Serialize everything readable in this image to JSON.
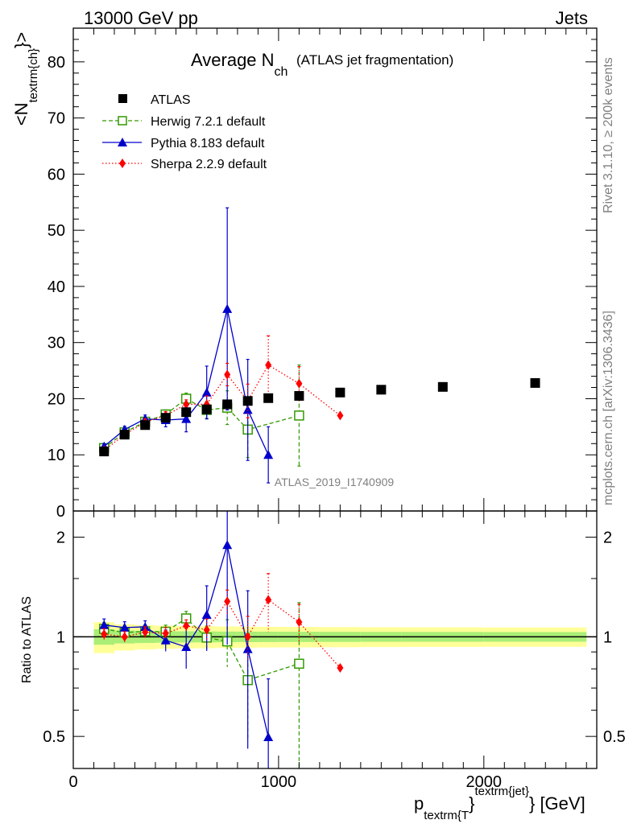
{
  "header": {
    "left": "13000 GeV pp",
    "right": "Jets"
  },
  "side_labels": {
    "rivet": "Rivet 3.1.10, ≥ 200k events",
    "mcplots": "mcplots.cern.ch [arXiv:1306.3436]"
  },
  "title": {
    "main": "Average N",
    "sub": "ch",
    "paren": "(ATLAS jet fragmentation)"
  },
  "watermark": "ATLAS_2019_I1740909",
  "axes": {
    "ylabel_main": "<N",
    "ylabel_sub": "textrm{ch}",
    "ylabel_close": "}>",
    "ylabel_ratio": "Ratio to ATLAS",
    "xlabel_p": "p",
    "xlabel_sub": "textrm{T",
    "xlabel_close": "}",
    "xlabel_sup": "textrm{jet}",
    "xlabel_unit": "} [GeV]",
    "xticks": [
      "0",
      "1000",
      "2000"
    ],
    "yticks_main": [
      "0",
      "10",
      "20",
      "30",
      "40",
      "50",
      "60",
      "70",
      "80"
    ],
    "yticks_ratio": [
      "0.5",
      "1",
      "2"
    ]
  },
  "chart_data": {
    "type": "scatter",
    "xlim": [
      0,
      2550
    ],
    "ylim_main": [
      0,
      86
    ],
    "ylim_ratio": [
      0.4,
      2.4
    ],
    "ratio_scale": "log",
    "legend_position": "top-left",
    "series": [
      {
        "name": "ATLAS",
        "color": "#000000",
        "marker": "square",
        "line": "none",
        "x": [
          150,
          250,
          350,
          450,
          550,
          650,
          750,
          850,
          950,
          1100,
          1300,
          1500,
          1800,
          2250
        ],
        "y": [
          10.6,
          13.6,
          15.3,
          16.6,
          17.6,
          18.1,
          19.0,
          19.6,
          20.1,
          20.5,
          21.1,
          21.6,
          22.1,
          22.8
        ],
        "err": [
          0.5,
          0.5,
          0.5,
          0.5,
          0.5,
          0.5,
          0.5,
          0.5,
          0.5,
          0.5,
          0.5,
          0.5,
          0.5,
          0.5
        ]
      },
      {
        "name": "Herwig 7.2.1 default",
        "color": "#339900",
        "marker": "open-square",
        "line": "dashed",
        "x": [
          150,
          250,
          350,
          450,
          550,
          650,
          750,
          850,
          1100
        ],
        "y": [
          11.2,
          14.0,
          15.9,
          17.2,
          20.0,
          18.0,
          18.4,
          14.5,
          17.0
        ],
        "err": [
          0.5,
          0.6,
          0.7,
          0.8,
          1.0,
          1.5,
          3.0,
          5.0,
          9.0
        ]
      },
      {
        "name": "Pythia 8.183 default",
        "color": "#0000cc",
        "marker": "triangle",
        "line": "solid",
        "x": [
          150,
          250,
          350,
          450,
          550,
          650,
          750,
          850,
          950
        ],
        "y": [
          11.5,
          14.5,
          16.4,
          16.2,
          16.4,
          21.1,
          36.0,
          18.0,
          10.0
        ],
        "err": [
          0.5,
          0.6,
          0.7,
          1.2,
          2.3,
          4.7,
          18.0,
          9.0,
          5.0
        ]
      },
      {
        "name": "Sherpa 2.2.9 default",
        "color": "#ff0000",
        "marker": "diamond",
        "line": "dotted",
        "x": [
          150,
          250,
          350,
          450,
          550,
          650,
          750,
          850,
          950,
          1100,
          1300
        ],
        "y": [
          10.8,
          13.6,
          15.8,
          17.0,
          19.0,
          19.0,
          24.3,
          19.6,
          26.0,
          22.7,
          17.0
        ],
        "err": [
          0.4,
          0.5,
          0.6,
          0.7,
          0.8,
          1.5,
          2.0,
          3.0,
          5.2,
          3.0,
          0.3
        ]
      }
    ]
  }
}
